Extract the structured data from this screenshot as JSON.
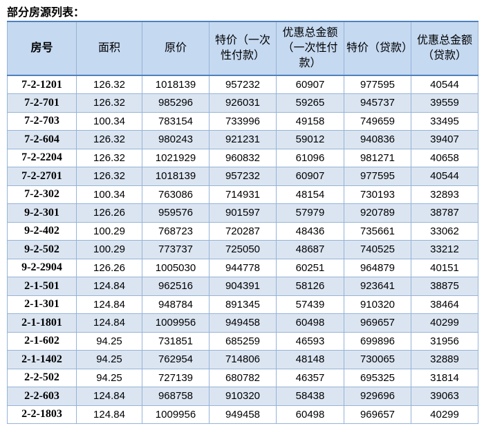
{
  "header": {
    "title": "部分房源列表："
  },
  "table": {
    "columns": [
      "房号",
      "面积",
      "原价",
      "特价（一次性付款）",
      "优惠总金额（一次性付款）",
      "特价（贷款）",
      "优惠总金额（贷款）"
    ],
    "rows": [
      [
        "7-2-1201",
        "126.32",
        "1018139",
        "957232",
        "60907",
        "977595",
        "40544"
      ],
      [
        "7-2-701",
        "126.32",
        "985296",
        "926031",
        "59265",
        "945737",
        "39559"
      ],
      [
        "7-2-703",
        "100.34",
        "783154",
        "733996",
        "49158",
        "749659",
        "33495"
      ],
      [
        "7-2-604",
        "126.32",
        "980243",
        "921231",
        "59012",
        "940836",
        "39407"
      ],
      [
        "7-2-2204",
        "126.32",
        "1021929",
        "960832",
        "61096",
        "981271",
        "40658"
      ],
      [
        "7-2-2701",
        "126.32",
        "1018139",
        "957232",
        "60907",
        "977595",
        "40544"
      ],
      [
        "7-2-302",
        "100.34",
        "763086",
        "714931",
        "48154",
        "730193",
        "32893"
      ],
      [
        "9-2-301",
        "126.26",
        "959576",
        "901597",
        "57979",
        "920789",
        "38787"
      ],
      [
        "9-2-402",
        "100.29",
        "768723",
        "720287",
        "48436",
        "735661",
        "33062"
      ],
      [
        "9-2-502",
        "100.29",
        "773737",
        "725050",
        "48687",
        "740525",
        "33212"
      ],
      [
        "9-2-2904",
        "126.26",
        "1005030",
        "944778",
        "60251",
        "964879",
        "40151"
      ],
      [
        "2-1-501",
        "124.84",
        "962516",
        "904391",
        "58126",
        "923641",
        "38875"
      ],
      [
        "2-1-301",
        "124.84",
        "948784",
        "891345",
        "57439",
        "910320",
        "38464"
      ],
      [
        "2-1-1801",
        "124.84",
        "1009956",
        "949458",
        "60498",
        "969657",
        "40299"
      ],
      [
        "2-1-602",
        "94.25",
        "731851",
        "685259",
        "46593",
        "699896",
        "31956"
      ],
      [
        "2-1-1402",
        "94.25",
        "762954",
        "714806",
        "48148",
        "730065",
        "32889"
      ],
      [
        "2-2-502",
        "94.25",
        "727139",
        "680782",
        "46357",
        "695325",
        "31814"
      ],
      [
        "2-2-603",
        "124.84",
        "968758",
        "910320",
        "58438",
        "929696",
        "39063"
      ],
      [
        "2-2-1803",
        "124.84",
        "1009956",
        "949458",
        "60498",
        "969657",
        "40299"
      ]
    ]
  }
}
